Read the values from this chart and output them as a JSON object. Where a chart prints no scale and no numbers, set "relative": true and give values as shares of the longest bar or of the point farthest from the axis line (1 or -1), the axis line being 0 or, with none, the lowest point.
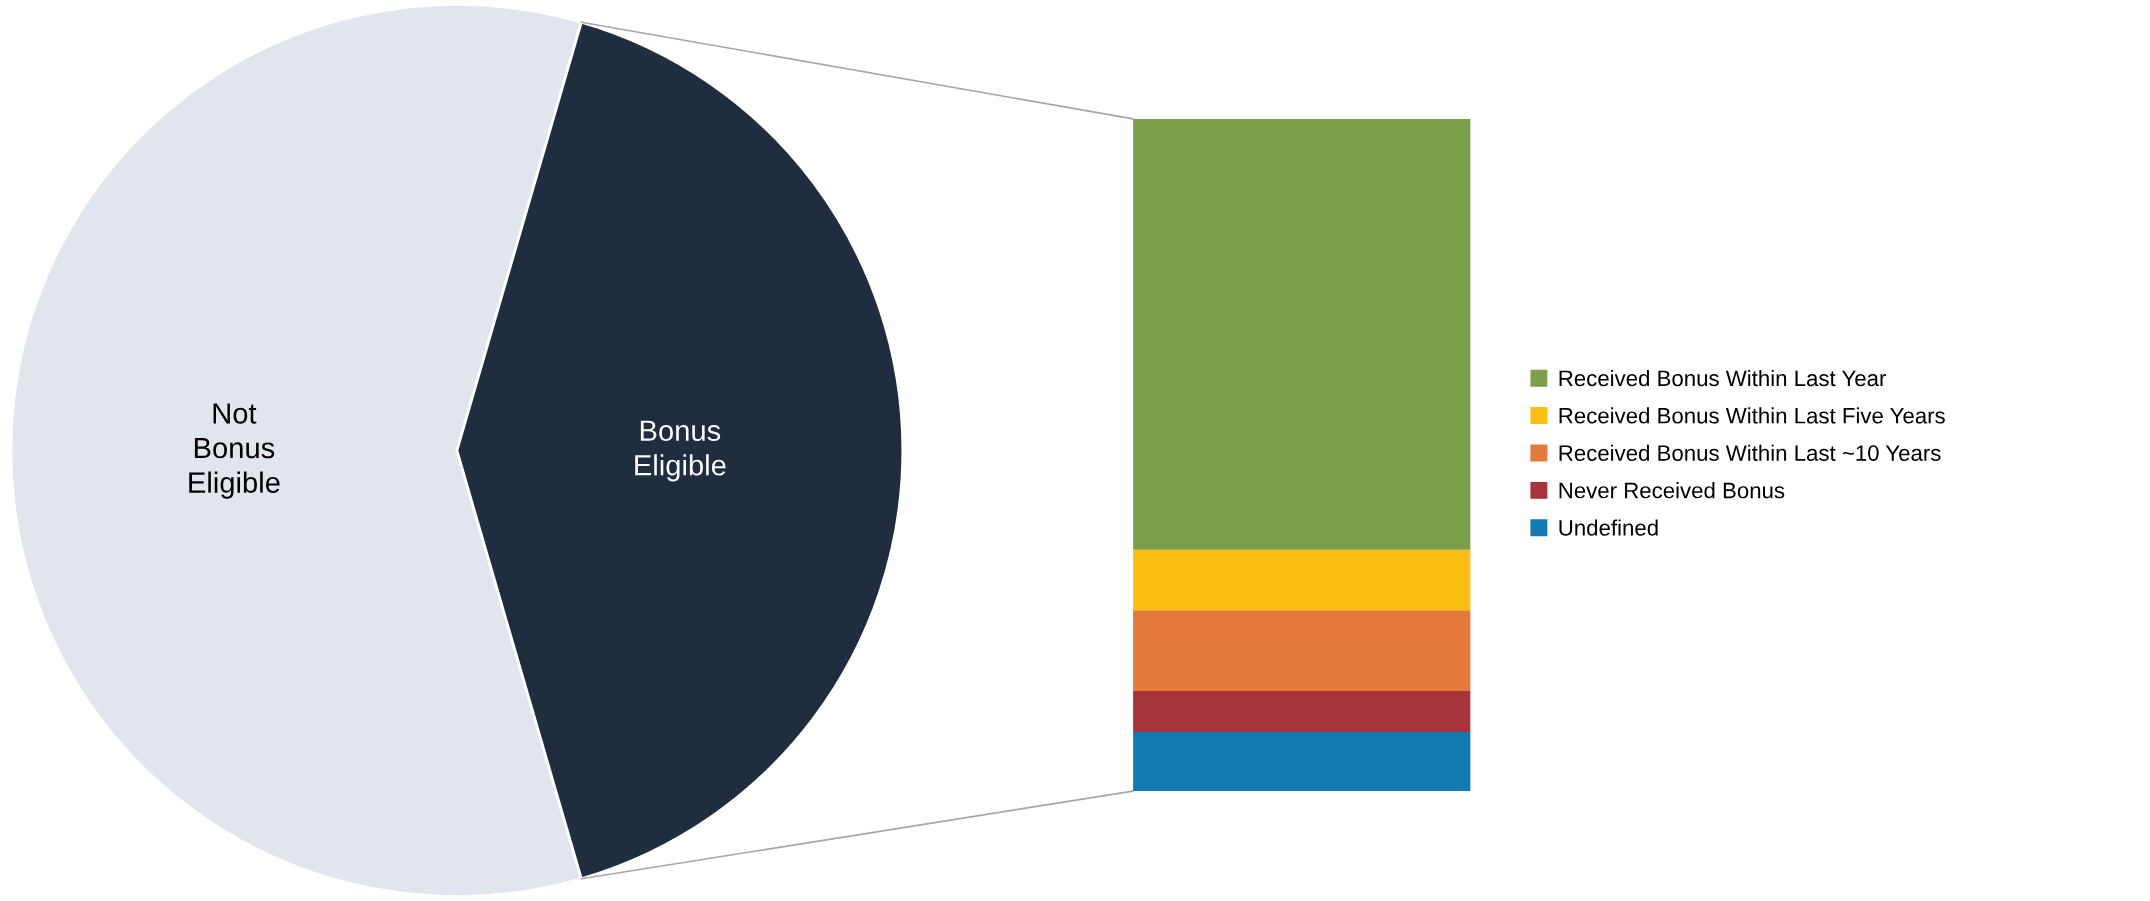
{
  "chart_data": [
    {
      "type": "pie",
      "categories": [
        "Not Bonus Eligible",
        "Bonus Eligible"
      ],
      "values": [
        59,
        41
      ],
      "colors": [
        "#e1e6ec",
        "#1f2d3e"
      ]
    },
    {
      "type": "bar",
      "stacked": true,
      "relative": true,
      "categories": [
        null
      ],
      "legend": "right",
      "series": [
        {
          "name": "Undefined",
          "color": "#137ab2",
          "values": [
            0.088
          ]
        },
        {
          "name": "Never Received Bonus",
          "color": "#a8343b",
          "values": [
            0.061
          ]
        },
        {
          "name": "Received Bonus Within Last ~10 Years",
          "color": "#e4793b",
          "values": [
            0.12
          ]
        },
        {
          "name": "Received Bonus Within Last Five Years",
          "color": "#fbbf14",
          "values": [
            0.09
          ]
        },
        {
          "name": "Received Bonus Within Last Year",
          "color": "#7c9f4b",
          "values": [
            0.641
          ]
        }
      ]
    }
  ]
}
